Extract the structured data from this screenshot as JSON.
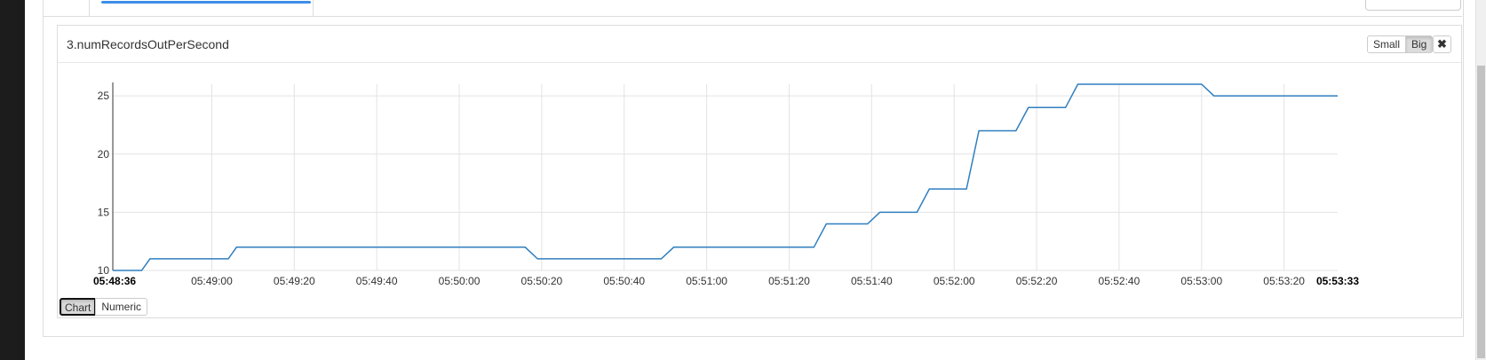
{
  "panel": {
    "title": "3.numRecordsOutPerSecond",
    "size_buttons": {
      "small": "Small",
      "big": "Big"
    },
    "close_glyph": "✖",
    "view_toggle": {
      "chart": "Chart",
      "numeric": "Numeric"
    }
  },
  "colors": {
    "line": "#2f7fc0",
    "grid": "#e3e3e3",
    "axis": "#333333",
    "tab_active": "#3c8ee8"
  },
  "chart_data": {
    "type": "line",
    "title": "",
    "xlabel": "",
    "ylabel": "",
    "xlim": [
      "05:48:36",
      "05:53:33"
    ],
    "ylim": [
      10,
      26
    ],
    "grid": true,
    "x_ticks": [
      {
        "label": "05:48:36",
        "t": "05:48:36",
        "bold": true
      },
      {
        "label": "05:49:00",
        "t": "05:49:00",
        "bold": false
      },
      {
        "label": "05:49:20",
        "t": "05:49:20",
        "bold": false
      },
      {
        "label": "05:49:40",
        "t": "05:49:40",
        "bold": false
      },
      {
        "label": "05:50:00",
        "t": "05:50:00",
        "bold": false
      },
      {
        "label": "05:50:20",
        "t": "05:50:20",
        "bold": false
      },
      {
        "label": "05:50:40",
        "t": "05:50:40",
        "bold": false
      },
      {
        "label": "05:51:00",
        "t": "05:51:00",
        "bold": false
      },
      {
        "label": "05:51:20",
        "t": "05:51:20",
        "bold": false
      },
      {
        "label": "05:51:40",
        "t": "05:51:40",
        "bold": false
      },
      {
        "label": "05:52:00",
        "t": "05:52:00",
        "bold": false
      },
      {
        "label": "05:52:20",
        "t": "05:52:20",
        "bold": false
      },
      {
        "label": "05:52:40",
        "t": "05:52:40",
        "bold": false
      },
      {
        "label": "05:53:00",
        "t": "05:53:00",
        "bold": false
      },
      {
        "label": "05:53:20",
        "t": "05:53:20",
        "bold": false
      },
      {
        "label": "05:53:33",
        "t": "05:53:33",
        "bold": true
      }
    ],
    "y_ticks": [
      10,
      15,
      20,
      25
    ],
    "series": [
      {
        "points": [
          [
            "05:48:36",
            10
          ],
          [
            "05:48:43",
            10
          ],
          [
            "05:48:45",
            11
          ],
          [
            "05:49:04",
            11
          ],
          [
            "05:49:06",
            12
          ],
          [
            "05:50:16",
            12
          ],
          [
            "05:50:19",
            11
          ],
          [
            "05:50:49",
            11
          ],
          [
            "05:50:52",
            12
          ],
          [
            "05:51:26",
            12
          ],
          [
            "05:51:29",
            14
          ],
          [
            "05:51:39",
            14
          ],
          [
            "05:51:42",
            15
          ],
          [
            "05:51:51",
            15
          ],
          [
            "05:51:54",
            17
          ],
          [
            "05:52:03",
            17
          ],
          [
            "05:52:06",
            22
          ],
          [
            "05:52:15",
            22
          ],
          [
            "05:52:18",
            24
          ],
          [
            "05:52:27",
            24
          ],
          [
            "05:52:30",
            26
          ],
          [
            "05:53:00",
            26
          ],
          [
            "05:53:03",
            25
          ],
          [
            "05:53:33",
            25
          ]
        ]
      }
    ]
  }
}
